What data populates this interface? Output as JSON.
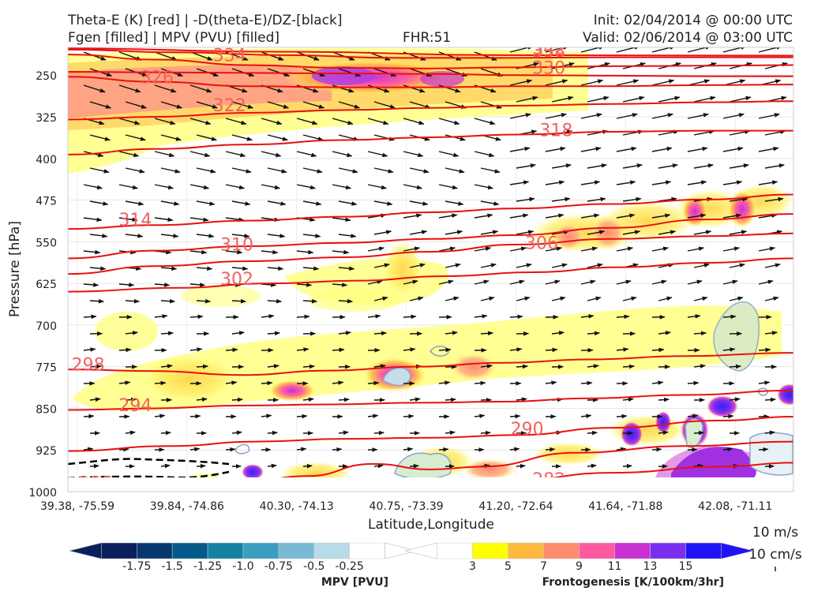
{
  "header": {
    "title_left_1": "Theta-E (K) [red] | -D(theta-E)/DZ-[black]",
    "title_left_2": "Fgen [filled] | MPV (PVU) [filled]",
    "fhr": "FHR:51",
    "init": "Init: 02/04/2014 @ 00:00 UTC",
    "valid": "Valid: 02/06/2014 @ 03:00 UTC"
  },
  "colors": {
    "theta_e": "#e8110f",
    "stability": "#000000",
    "fgen": [
      "#ffff00",
      "#ffb93f",
      "#ff8c6e",
      "#ff5aa0",
      "#c832d2",
      "#7a2ef0",
      "#1f14f5"
    ],
    "mpv": [
      "#0b1f5e",
      "#06386f",
      "#035a8a",
      "#1481a3",
      "#3b9ec0",
      "#78bad3",
      "#b7dbe8",
      "#ffffff"
    ]
  },
  "chart_data": {
    "type": "cross-section",
    "xlabel": "Latitude,Longitude",
    "ylabel": "Pressure [hPa]",
    "x_ticks": [
      "39.38, -75.59",
      "39.84, -74.86",
      "40.30, -74.13",
      "40.75, -73.39",
      "41.20, -72.64",
      "41.64, -71.88",
      "42.08, -71.11"
    ],
    "y_ticks": [
      250,
      325,
      400,
      475,
      550,
      625,
      700,
      775,
      850,
      925,
      1000
    ],
    "ylim": [
      1000,
      200
    ],
    "theta_e_contours": [
      {
        "value": 282,
        "label": "282",
        "pts": [
          [
            0.47,
            1000
          ],
          [
            0.6,
            982
          ],
          [
            0.75,
            966
          ],
          [
            0.9,
            955
          ],
          [
            1.0,
            948
          ]
        ]
      },
      {
        "value": 286,
        "label": "286",
        "pts": [
          [
            0.0,
            995
          ],
          [
            0.12,
            995
          ],
          [
            0.22,
            990
          ],
          [
            0.33,
            972
          ],
          [
            0.42,
            950
          ],
          [
            0.5,
            960
          ],
          [
            0.57,
            955
          ],
          [
            0.7,
            930
          ],
          [
            0.85,
            918
          ],
          [
            1.0,
            910
          ]
        ]
      },
      {
        "value": 290,
        "label": "290",
        "pts": [
          [
            0.0,
            927
          ],
          [
            0.14,
            918
          ],
          [
            0.26,
            910
          ],
          [
            0.38,
            905
          ],
          [
            0.5,
            903
          ],
          [
            0.62,
            898
          ],
          [
            0.75,
            885
          ],
          [
            0.9,
            872
          ],
          [
            1.0,
            865
          ]
        ]
      },
      {
        "value": 294,
        "label": "294",
        "pts": [
          [
            0.0,
            853
          ],
          [
            0.12,
            850
          ],
          [
            0.24,
            845
          ],
          [
            0.36,
            843
          ],
          [
            0.48,
            840
          ],
          [
            0.6,
            838
          ],
          [
            0.72,
            832
          ],
          [
            0.85,
            826
          ],
          [
            1.0,
            818
          ]
        ]
      },
      {
        "value": 298,
        "label": "298",
        "pts": [
          [
            0.0,
            780
          ],
          [
            0.12,
            783
          ],
          [
            0.24,
            790
          ],
          [
            0.36,
            782
          ],
          [
            0.48,
            775
          ],
          [
            0.6,
            768
          ],
          [
            0.72,
            762
          ],
          [
            0.85,
            756
          ],
          [
            1.0,
            750
          ]
        ]
      },
      {
        "value": 302,
        "label": "302",
        "pts": [
          [
            0.0,
            640
          ],
          [
            0.15,
            633
          ],
          [
            0.28,
            625
          ],
          [
            0.4,
            620
          ],
          [
            0.52,
            612
          ],
          [
            0.64,
            605
          ],
          [
            0.76,
            596
          ],
          [
            0.88,
            588
          ],
          [
            1.0,
            580
          ]
        ]
      },
      {
        "value": 306,
        "label": "306",
        "pts": [
          [
            0.0,
            608
          ],
          [
            0.12,
            594
          ],
          [
            0.25,
            585
          ],
          [
            0.38,
            578
          ],
          [
            0.5,
            568
          ],
          [
            0.62,
            555
          ],
          [
            0.75,
            545
          ],
          [
            0.88,
            540
          ],
          [
            1.0,
            535
          ]
        ]
      },
      {
        "value": 310,
        "label": "310",
        "pts": [
          [
            0.0,
            580
          ],
          [
            0.12,
            566
          ],
          [
            0.25,
            558
          ],
          [
            0.38,
            552
          ],
          [
            0.5,
            545
          ],
          [
            0.62,
            538
          ],
          [
            0.75,
            525
          ],
          [
            0.88,
            510
          ],
          [
            1.0,
            500
          ]
        ]
      },
      {
        "value": 314,
        "label": "314",
        "pts": [
          [
            0.0,
            527
          ],
          [
            0.12,
            520
          ],
          [
            0.25,
            512
          ],
          [
            0.38,
            505
          ],
          [
            0.5,
            497
          ],
          [
            0.62,
            490
          ],
          [
            0.75,
            482
          ],
          [
            0.88,
            474
          ],
          [
            1.0,
            465
          ]
        ]
      },
      {
        "value": 318,
        "label": "318",
        "pts": [
          [
            0.0,
            393
          ],
          [
            0.12,
            383
          ],
          [
            0.25,
            375
          ],
          [
            0.38,
            367
          ],
          [
            0.5,
            362
          ],
          [
            0.62,
            357
          ],
          [
            0.75,
            352
          ],
          [
            0.88,
            350
          ],
          [
            1.0,
            350
          ]
        ]
      },
      {
        "value": 322,
        "label": "322",
        "pts": [
          [
            0.0,
            330
          ],
          [
            0.12,
            325
          ],
          [
            0.25,
            318
          ],
          [
            0.38,
            313
          ],
          [
            0.5,
            309
          ],
          [
            0.62,
            305
          ],
          [
            0.75,
            302
          ],
          [
            0.88,
            299
          ],
          [
            1.0,
            297
          ]
        ]
      },
      {
        "value": 326,
        "label": "326",
        "pts": [
          [
            0.0,
            253
          ],
          [
            0.12,
            262
          ],
          [
            0.25,
            270
          ],
          [
            0.38,
            272
          ],
          [
            0.5,
            272
          ],
          [
            0.62,
            270
          ],
          [
            0.75,
            270
          ],
          [
            0.88,
            268
          ],
          [
            1.0,
            267
          ]
        ]
      },
      {
        "value": 330,
        "label": "330",
        "pts": [
          [
            0.0,
            244
          ],
          [
            0.12,
            245
          ],
          [
            0.25,
            246
          ],
          [
            0.38,
            247
          ],
          [
            0.5,
            248
          ],
          [
            0.62,
            250
          ],
          [
            0.75,
            251
          ],
          [
            0.88,
            252
          ],
          [
            1.0,
            252
          ]
        ]
      },
      {
        "value": 334,
        "label": "334",
        "pts": [
          [
            0.0,
            213
          ],
          [
            0.12,
            222
          ],
          [
            0.25,
            232
          ],
          [
            0.38,
            237
          ],
          [
            0.5,
            238
          ],
          [
            0.62,
            236
          ],
          [
            0.75,
            234
          ],
          [
            0.88,
            233
          ],
          [
            1.0,
            232
          ]
        ]
      },
      {
        "value": 338,
        "label": "338",
        "pts": [
          [
            0.0,
            204
          ],
          [
            0.15,
            209
          ],
          [
            0.3,
            214
          ],
          [
            0.45,
            219
          ],
          [
            0.6,
            219
          ],
          [
            0.75,
            218
          ],
          [
            1.0,
            218
          ]
        ]
      },
      {
        "value": 342,
        "label": "342",
        "pts": [
          [
            0.0,
            202
          ],
          [
            0.3,
            208
          ],
          [
            0.6,
            214
          ],
          [
            1.0,
            215
          ]
        ]
      }
    ],
    "colorbars": [
      {
        "label": "MPV [PVU]",
        "ticks": [
          "-1.75",
          "-1.5",
          "-1.25",
          "-1.0",
          "-0.75",
          "-0.5",
          "-0.25"
        ]
      },
      {
        "label": "Frontogenesis [K/100km/3hr]",
        "ticks": [
          "3",
          "5",
          "7",
          "9",
          "11",
          "13",
          "15"
        ]
      }
    ],
    "wind_key": [
      "10 m/s",
      "10 cm/s"
    ],
    "grid": true
  }
}
